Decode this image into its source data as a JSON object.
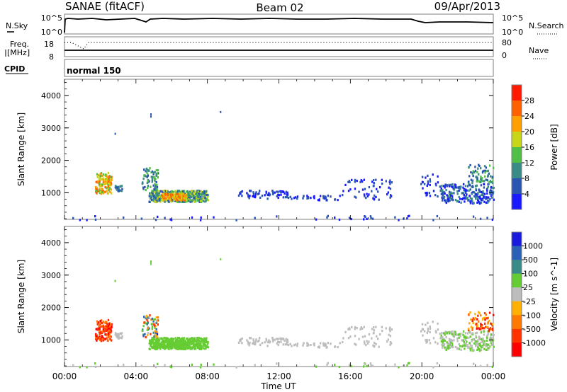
{
  "header": {
    "station": "SANAE (fitACF)",
    "beam": "Beam 02",
    "date": "09/Apr/2013"
  },
  "strips": {
    "nsky": {
      "label": "N.Sky",
      "ticks": [
        "10^5",
        "10^0"
      ]
    },
    "nsearch": {
      "label": "N.Search",
      "ticks": [
        "10^5",
        "10^0"
      ]
    },
    "freq": {
      "label_line1": "Freq.",
      "label_line2": "[MHz]",
      "ticks": [
        "18",
        "8"
      ]
    },
    "nave": {
      "label": "Nave",
      "ticks": [
        "80",
        "0"
      ]
    },
    "cpid": {
      "label": "CPID",
      "value": "normal 150"
    }
  },
  "chart_data": [
    {
      "type": "heatmap",
      "parameter": "Power",
      "ylabel": "Slant Range [km]",
      "xlabel": "Time UT",
      "xlim": [
        0,
        24
      ],
      "ylim": [
        180,
        4500
      ],
      "x_ticks": [
        "00:00",
        "04:00",
        "08:00",
        "12:00",
        "16:00",
        "20:00",
        "00:00"
      ],
      "y_ticks": [
        1000,
        2000,
        3000,
        4000
      ],
      "colorbar": {
        "label": "Power [dB]",
        "range": [
          0,
          32
        ],
        "ticks": [
          "4",
          "8",
          "12",
          "16",
          "20",
          "24",
          "28"
        ],
        "colors": [
          "#1a1aff",
          "#2a55b0",
          "#3a8a86",
          "#4fbf46",
          "#c8d61a",
          "#ffa000",
          "#ff6000",
          "#ff1a00"
        ]
      }
    },
    {
      "type": "heatmap",
      "parameter": "Velocity",
      "ylabel": "Slant Range [km]",
      "xlabel": "Time UT",
      "xlim": [
        0,
        24
      ],
      "ylim": [
        180,
        4500
      ],
      "x_ticks": [
        "00:00",
        "04:00",
        "08:00",
        "12:00",
        "16:00",
        "20:00",
        "00:00"
      ],
      "y_ticks": [
        1000,
        2000,
        3000,
        4000
      ],
      "colorbar": {
        "label": "Velocity [m s^-1]",
        "ticks": [
          "1000",
          "500",
          "100",
          "25",
          "-25",
          "-100",
          "-500",
          "-1000"
        ],
        "colors": [
          "#1a1adf",
          "#2a60b5",
          "#3a8a88",
          "#66cc33",
          "#bdbdbd",
          "#ffb000",
          "#ff7a00",
          "#ff3300",
          "#ff0000"
        ]
      }
    }
  ],
  "footer": {
    "time_label": "Time UT"
  },
  "colors": {
    "axis": "#000000",
    "frame": "#7f7f7f",
    "background": "#ffffff"
  }
}
